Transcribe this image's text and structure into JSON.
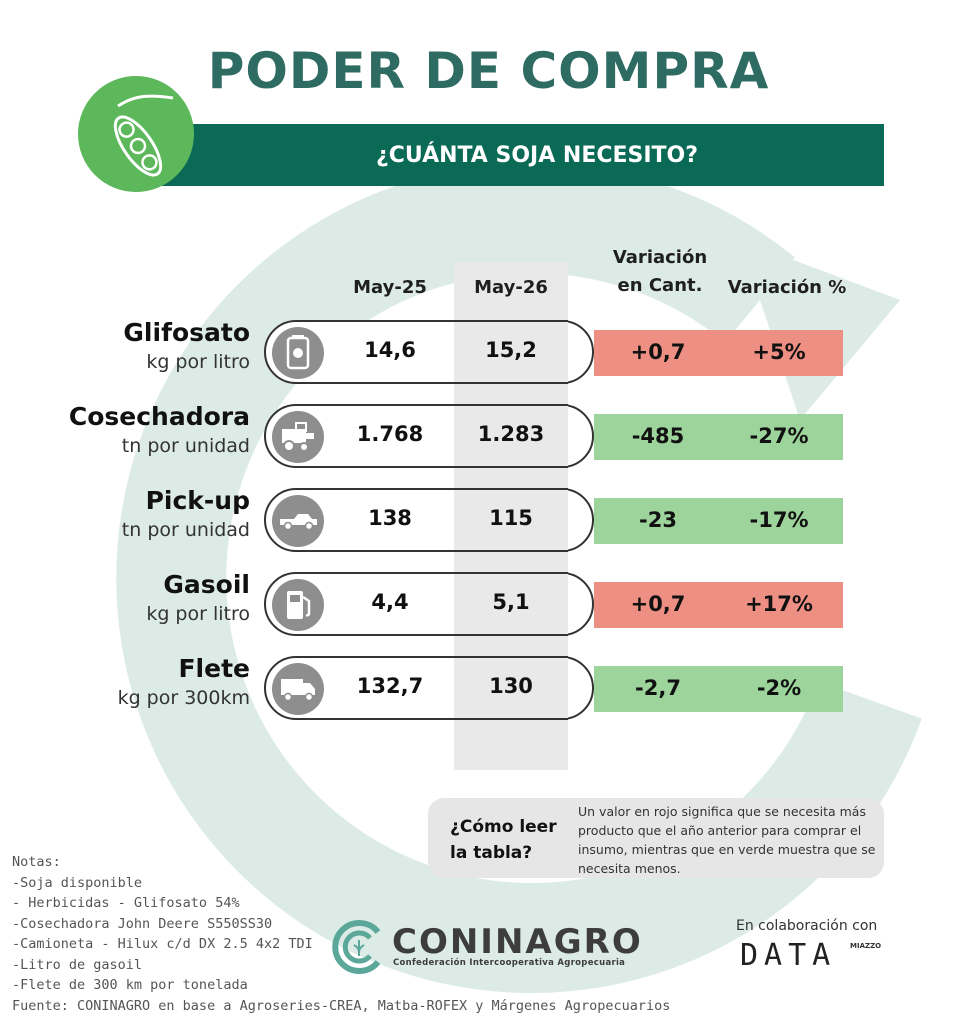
{
  "title": "PODER DE COMPRA",
  "subtitle": "¿CUÁNTA SOJA NECESITO?",
  "columns": {
    "may25": "May-25",
    "may26": "May-26",
    "var_cant_line1": "Variación",
    "var_cant_line2": "en Cant.",
    "var_pct": "Variación %"
  },
  "rows": [
    {
      "name": "Glifosato",
      "unit": "kg por litro",
      "may25": "14,6",
      "may26": "15,2",
      "var_cant": "+0,7",
      "var_pct": "+5%",
      "status": "red",
      "icon": "herbicide-bottle-icon"
    },
    {
      "name": "Cosechadora",
      "unit": "tn por unidad",
      "may25": "1.768",
      "may26": "1.283",
      "var_cant": "-485",
      "var_pct": "-27%",
      "status": "green",
      "icon": "combine-harvester-icon"
    },
    {
      "name": "Pick-up",
      "unit": "tn por unidad",
      "may25": "138",
      "may26": "115",
      "var_cant": "-23",
      "var_pct": "-17%",
      "status": "green",
      "icon": "pickup-truck-icon"
    },
    {
      "name": "Gasoil",
      "unit": "kg por litro",
      "may25": "4,4",
      "may26": "5,1",
      "var_cant": "+0,7",
      "var_pct": "+17%",
      "status": "red",
      "icon": "fuel-pump-icon"
    },
    {
      "name": "Flete",
      "unit": "kg por 300km",
      "may25": "132,7",
      "may26": "130",
      "var_cant": "-2,7",
      "var_pct": "-2%",
      "status": "green",
      "icon": "truck-icon"
    }
  ],
  "help": {
    "question_line1": "¿Cómo leer",
    "question_line2": "la tabla?",
    "text": "Un valor en rojo significa que se necesita más producto que el año anterior para comprar el insumo, mientras que en verde muestra que se necesita menos."
  },
  "notes": [
    "Notas:",
    "-Soja disponible",
    "- Herbicidas - Glifosato 54%",
    "-Cosechadora John Deere S550SS30",
    "-Camioneta - Hilux c/d DX 2.5 4x2 TDI",
    "-Litro de gasoil",
    "-Flete de 300 km por tonelada",
    "Fuente: CONINAGRO en base a Agroseries-CREA, Matba-ROFEX y Márgenes Agropecuarios"
  ],
  "logo": {
    "name": "CONINAGRO",
    "tagline": "Confederación Intercooperativa Agropecuaria"
  },
  "collab": {
    "label": "En colaboración con",
    "brand": "DATA",
    "brand_small": "MIAZZO"
  },
  "colors": {
    "banner": "#0b6a56",
    "title": "#2e6b63",
    "badge": "#5cb85a",
    "red": "#ee8f84",
    "green": "#9dd49c",
    "ring": "#dcebe5"
  }
}
